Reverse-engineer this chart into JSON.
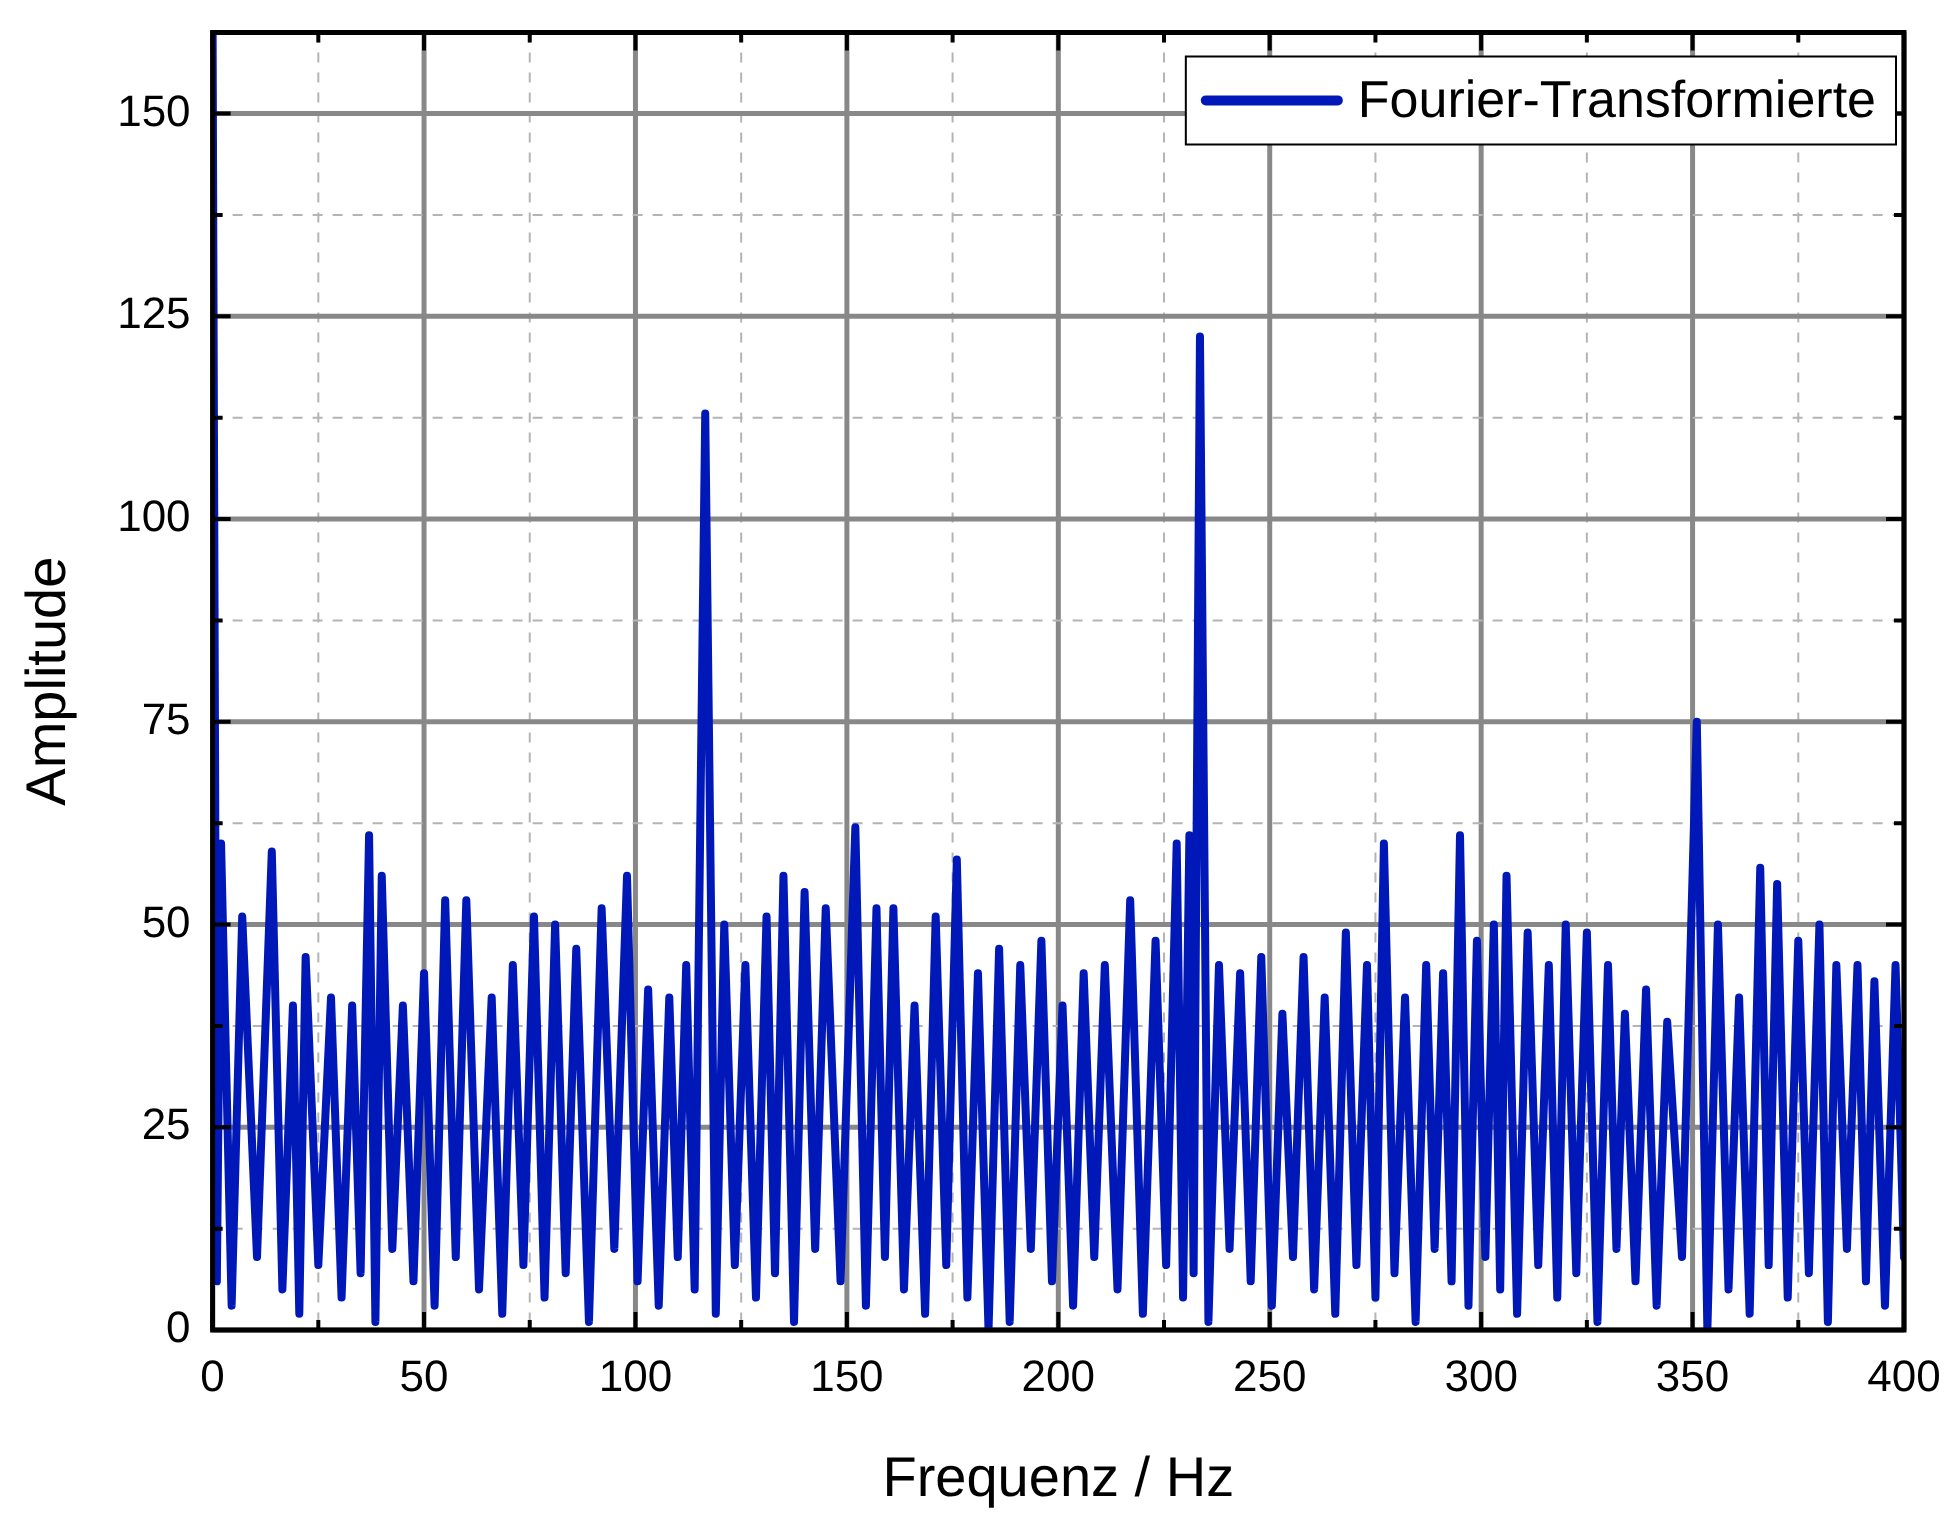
{
  "chart_data": {
    "type": "line",
    "xlabel": "Frequenz / Hz",
    "ylabel": "Amplitude",
    "x": [
      0,
      1,
      2,
      4.5,
      7,
      10.5,
      14,
      16.5,
      19,
      20.5,
      22,
      25,
      28,
      30.5,
      33,
      35,
      37,
      38.5,
      40,
      42.5,
      45,
      47.5,
      50,
      52.5,
      55,
      57.5,
      60,
      63,
      66,
      68.5,
      71,
      73.5,
      76,
      78.5,
      81,
      83.5,
      86,
      89,
      92,
      95,
      98,
      100.5,
      103,
      105.5,
      108,
      110,
      112,
      114,
      116.5,
      119,
      121,
      123.5,
      126,
      128.5,
      131,
      133,
      135,
      137.5,
      140,
      142.5,
      145,
      148.5,
      152,
      154.5,
      157,
      159,
      161,
      163.5,
      166,
      168.5,
      171,
      173.5,
      176,
      178.5,
      181,
      183.5,
      186,
      188.5,
      191,
      193.5,
      196,
      198.5,
      201,
      203.5,
      206,
      208.5,
      211,
      214,
      217,
      220,
      223,
      225.5,
      228,
      229.5,
      231,
      232,
      233.5,
      235.5,
      238,
      240.5,
      243,
      245.5,
      248,
      250.5,
      253,
      255.5,
      258,
      260.5,
      263,
      265.5,
      268,
      270.5,
      273,
      275,
      277,
      279.5,
      282,
      284.5,
      287,
      289,
      291,
      293,
      295,
      297,
      299,
      301,
      303,
      304.5,
      306,
      308.5,
      311,
      313.5,
      316,
      318,
      320,
      322.5,
      325,
      327.5,
      330,
      332,
      334,
      336.5,
      339,
      341.5,
      344,
      347.5,
      351,
      353.5,
      356,
      358.5,
      361,
      363.5,
      366,
      368,
      370,
      372.5,
      375,
      377.5,
      380,
      382,
      384,
      386.5,
      389,
      391,
      393,
      395.5,
      398,
      400
    ],
    "series": [
      {
        "name": "Fourier-Transformierte",
        "color": "#0018b8",
        "values": [
          160,
          6,
          60,
          3,
          51,
          9,
          59,
          5,
          40,
          2,
          46,
          8,
          41,
          4,
          40,
          7,
          61,
          1,
          56,
          10,
          40,
          6,
          44,
          3,
          53,
          9,
          53,
          5,
          41,
          2,
          45,
          8,
          51,
          4,
          50,
          7,
          47,
          1,
          52,
          10,
          56,
          6,
          42,
          3,
          41,
          9,
          45,
          5,
          113,
          2,
          50,
          8,
          45,
          4,
          51,
          7,
          56,
          1,
          54,
          10,
          52,
          6,
          62,
          3,
          52,
          9,
          52,
          5,
          40,
          2,
          51,
          8,
          58,
          4,
          44,
          0,
          47,
          1,
          45,
          10,
          48,
          6,
          40,
          3,
          44,
          9,
          45,
          5,
          53,
          2,
          48,
          8,
          60,
          4,
          61,
          7,
          122.5,
          1,
          45,
          10,
          44,
          6,
          46,
          3,
          39,
          9,
          46,
          5,
          41,
          2,
          49,
          8,
          45,
          4,
          60,
          7,
          41,
          1,
          45,
          10,
          44,
          6,
          61,
          3,
          48,
          9,
          50,
          5,
          56,
          2,
          49,
          8,
          45,
          4,
          50,
          7,
          49,
          1,
          45,
          10,
          39,
          6,
          42,
          3,
          38,
          9,
          75,
          0,
          50,
          5,
          41,
          2,
          57,
          8,
          55,
          4,
          48,
          7,
          50,
          1,
          45,
          10,
          45,
          6,
          43,
          3,
          45,
          9
        ]
      }
    ],
    "xlim": [
      0,
      400
    ],
    "xticks": [
      0,
      {
        "value": 25,
        "label": null
      },
      50,
      {
        "value": 75,
        "label": null
      },
      100,
      {
        "value": 125,
        "label": null
      },
      150,
      {
        "value": 175,
        "label": null
      },
      200,
      {
        "value": 225,
        "label": null
      },
      250,
      {
        "value": 275,
        "label": null
      },
      300,
      {
        "value": 325,
        "label": null
      },
      350,
      {
        "value": 375,
        "label": null
      },
      400
    ],
    "ylim": [
      0,
      160
    ],
    "yticks": [
      0,
      {
        "value": 12.5,
        "label": null
      },
      25,
      {
        "value": 37.5,
        "label": null
      },
      50,
      {
        "value": 62.5,
        "label": null
      },
      75,
      {
        "value": 87.5,
        "label": null
      },
      100,
      {
        "value": 112.5,
        "label": null
      },
      125,
      {
        "value": 137.5,
        "label": null
      },
      150
    ],
    "grid": true,
    "legend": "top right",
    "marker": "none",
    "line_style": "solid"
  }
}
